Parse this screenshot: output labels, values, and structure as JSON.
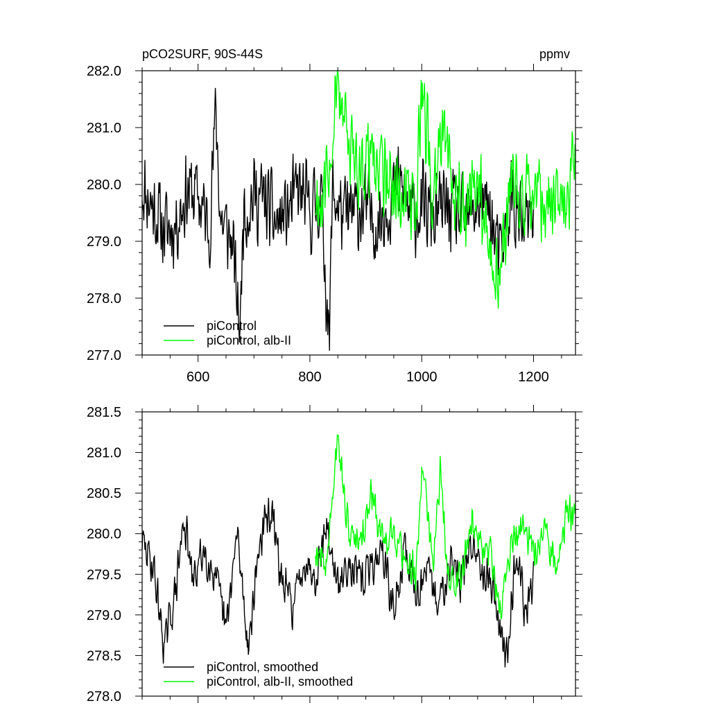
{
  "chart_data": [
    {
      "type": "line",
      "title": "pCO2SURF, 90S-44S",
      "units_label": "ppmv",
      "xlim": [
        500,
        1275
      ],
      "ylim": [
        277.0,
        282.0
      ],
      "xticks": [
        600,
        800,
        1000,
        1200
      ],
      "xtick_labels": [
        "600",
        "800",
        "1000",
        "1200"
      ],
      "yticks": [
        277.0,
        278.0,
        279.0,
        280.0,
        281.0,
        282.0
      ],
      "ytick_labels": [
        "277.0",
        "278.0",
        "279.0",
        "280.0",
        "281.0",
        "282.0"
      ],
      "legend_position": "bottom-left",
      "series": [
        {
          "name": "piControl",
          "color": "#000000",
          "x_start": 500,
          "x_end": 1200,
          "anchor_x": [
            500,
            520,
            540,
            560,
            580,
            600,
            620,
            632,
            640,
            660,
            676,
            680,
            700,
            720,
            740,
            760,
            780,
            800,
            820,
            835,
            840,
            860,
            880,
            900,
            920,
            940,
            960,
            980,
            1000,
            1020,
            1040,
            1060,
            1080,
            1100,
            1120,
            1140,
            1160,
            1180,
            1200
          ],
          "anchor_y": [
            280.0,
            279.6,
            279.2,
            279.3,
            279.9,
            279.8,
            279.2,
            281.3,
            279.4,
            279.0,
            277.4,
            279.5,
            279.8,
            279.7,
            279.3,
            279.5,
            279.9,
            279.5,
            279.8,
            277.2,
            279.9,
            279.4,
            279.5,
            279.6,
            279.3,
            279.7,
            280.0,
            279.5,
            279.6,
            279.4,
            279.6,
            279.5,
            279.3,
            279.7,
            279.6,
            278.6,
            279.8,
            279.2,
            279.4
          ],
          "noise_amp": 1.0
        },
        {
          "name": "piControl, alb-II",
          "color": "#00ff00",
          "x_start": 810,
          "x_end": 1275,
          "anchor_x": [
            810,
            830,
            850,
            870,
            890,
            910,
            930,
            950,
            970,
            990,
            1001,
            1020,
            1040,
            1060,
            1080,
            1100,
            1120,
            1140,
            1160,
            1180,
            1200,
            1220,
            1240,
            1260,
            1275
          ],
          "anchor_y": [
            279.7,
            279.9,
            281.9,
            280.5,
            280.3,
            280.6,
            280.2,
            279.8,
            279.9,
            279.6,
            281.7,
            279.8,
            281.0,
            279.7,
            279.6,
            280.0,
            279.0,
            278.3,
            280.1,
            279.7,
            279.9,
            279.7,
            279.6,
            279.5,
            280.6
          ],
          "noise_amp": 1.0
        }
      ]
    },
    {
      "type": "line",
      "title": "",
      "xlim": [
        500,
        1275
      ],
      "ylim": [
        278.0,
        281.5
      ],
      "xticks": [
        600,
        800,
        1000,
        1200
      ],
      "yticks": [
        278.0,
        278.5,
        279.0,
        279.5,
        280.0,
        280.5,
        281.0,
        281.5
      ],
      "ytick_labels": [
        "278.0",
        "278.5",
        "279.0",
        "279.5",
        "280.0",
        "280.5",
        "281.0",
        "281.5"
      ],
      "legend_position": "bottom-left",
      "series": [
        {
          "name": "piControl, smoothed",
          "color": "#000000",
          "x_start": 500,
          "x_end": 1200,
          "anchor_x": [
            500,
            520,
            540,
            560,
            575,
            590,
            610,
            630,
            650,
            670,
            690,
            710,
            730,
            750,
            770,
            790,
            810,
            830,
            850,
            870,
            890,
            910,
            930,
            950,
            970,
            990,
            1010,
            1030,
            1050,
            1070,
            1090,
            1110,
            1130,
            1150,
            1160,
            1170,
            1185,
            1200
          ],
          "anchor_y": [
            279.9,
            279.6,
            278.6,
            279.3,
            280.2,
            279.4,
            279.8,
            279.5,
            278.8,
            280.0,
            278.6,
            279.9,
            280.3,
            279.4,
            279.1,
            279.7,
            279.5,
            280.1,
            279.3,
            279.7,
            279.4,
            279.6,
            279.8,
            279.0,
            279.8,
            279.3,
            279.5,
            279.1,
            279.7,
            279.4,
            279.9,
            279.6,
            279.3,
            278.4,
            279.2,
            279.8,
            279.0,
            279.4
          ],
          "noise_amp": 0.35
        },
        {
          "name": "piControl, alb-II, smoothed",
          "color": "#00ff00",
          "x_start": 810,
          "x_end": 1275,
          "anchor_x": [
            810,
            830,
            850,
            870,
            890,
            910,
            930,
            950,
            970,
            990,
            1002,
            1020,
            1033,
            1050,
            1070,
            1090,
            1110,
            1125,
            1140,
            1160,
            1180,
            1200,
            1220,
            1240,
            1260,
            1275
          ],
          "anchor_y": [
            279.8,
            279.6,
            281.2,
            280.0,
            279.8,
            280.5,
            279.9,
            280.0,
            279.7,
            279.5,
            280.9,
            279.5,
            280.8,
            279.3,
            279.5,
            280.2,
            279.8,
            279.7,
            279.0,
            279.9,
            280.1,
            279.8,
            280.0,
            279.6,
            280.3,
            280.2
          ],
          "noise_amp": 0.3
        }
      ]
    }
  ]
}
